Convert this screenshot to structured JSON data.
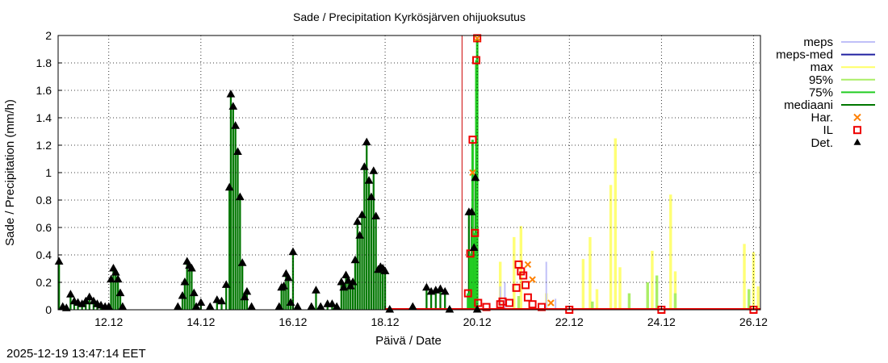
{
  "chart_data": {
    "type": "bar",
    "title": "Sade / Precipitation  Kyrkösjärven ohijuoksutus",
    "xlabel": "Päivä / Date",
    "ylabel": "Sade / Precipitation (mm/h)",
    "xlim": [
      10.9,
      26.15
    ],
    "ylim": [
      0,
      2
    ],
    "yticks": [
      0,
      0.2,
      0.4,
      0.6,
      0.8,
      1,
      1.2,
      1.4,
      1.6,
      1.8,
      2
    ],
    "ytick_labels": [
      "0",
      "0.2",
      "0.4",
      "0.6",
      "0.8",
      "1",
      "1.2",
      "1.4",
      "1.6",
      "1.8",
      "2"
    ],
    "xticks": [
      12,
      14,
      16,
      18,
      20,
      22,
      24,
      26
    ],
    "xtick_labels": [
      "12.12",
      "14.12",
      "16.12",
      "18.12",
      "20.12",
      "22.12",
      "24.12",
      "26.12"
    ],
    "now_marker": 19.67,
    "legend": [
      {
        "label": "meps",
        "style": "line",
        "color": "#c0c0f8"
      },
      {
        "label": "meps-med",
        "style": "line",
        "color": "#2020a0"
      },
      {
        "label": "max",
        "style": "line",
        "color": "#ffff66"
      },
      {
        "label": "95%",
        "style": "line",
        "color": "#aaee66"
      },
      {
        "label": "75%",
        "style": "line",
        "color": "#22cc22"
      },
      {
        "label": "mediaani",
        "style": "line",
        "color": "#007700"
      },
      {
        "label": "Har.",
        "style": "cross",
        "color": "#ff8000"
      },
      {
        "label": "IL",
        "style": "square",
        "color": "#ee0000"
      },
      {
        "label": "Det.",
        "style": "triangle",
        "color": "#000000"
      }
    ],
    "series": [
      {
        "name": "Det. (observed, hourly)",
        "points": [
          [
            10.92,
            0.35
          ],
          [
            11.0,
            0.02
          ],
          [
            11.08,
            0.01
          ],
          [
            11.17,
            0.11
          ],
          [
            11.25,
            0.06
          ],
          [
            11.33,
            0.05
          ],
          [
            11.42,
            0.04
          ],
          [
            11.5,
            0.06
          ],
          [
            11.58,
            0.09
          ],
          [
            11.67,
            0.06
          ],
          [
            11.75,
            0.04
          ],
          [
            11.83,
            0.03
          ],
          [
            11.92,
            0.02
          ],
          [
            12.0,
            0.02
          ],
          [
            12.05,
            0.22
          ],
          [
            12.1,
            0.3
          ],
          [
            12.15,
            0.27
          ],
          [
            12.2,
            0.22
          ],
          [
            12.25,
            0.12
          ],
          [
            12.3,
            0.02
          ],
          [
            13.5,
            0.02
          ],
          [
            13.6,
            0.1
          ],
          [
            13.65,
            0.2
          ],
          [
            13.7,
            0.35
          ],
          [
            13.75,
            0.32
          ],
          [
            13.8,
            0.3
          ],
          [
            13.85,
            0.12
          ],
          [
            13.9,
            0.02
          ],
          [
            14.0,
            0.05
          ],
          [
            14.2,
            0.02
          ],
          [
            14.35,
            0.07
          ],
          [
            14.45,
            0.06
          ],
          [
            14.55,
            0.18
          ],
          [
            14.62,
            0.89
          ],
          [
            14.65,
            1.57
          ],
          [
            14.7,
            1.48
          ],
          [
            14.75,
            1.34
          ],
          [
            14.8,
            1.15
          ],
          [
            14.85,
            0.82
          ],
          [
            14.9,
            0.34
          ],
          [
            14.95,
            0.09
          ],
          [
            15.0,
            0.13
          ],
          [
            15.1,
            0.02
          ],
          [
            15.7,
            0.02
          ],
          [
            15.75,
            0.16
          ],
          [
            15.8,
            0.17
          ],
          [
            15.85,
            0.26
          ],
          [
            15.9,
            0.23
          ],
          [
            15.95,
            0.05
          ],
          [
            16.0,
            0.42
          ],
          [
            16.1,
            0.02
          ],
          [
            16.4,
            0.02
          ],
          [
            16.5,
            0.14
          ],
          [
            16.6,
            0.02
          ],
          [
            16.75,
            0.04
          ],
          [
            16.85,
            0.04
          ],
          [
            16.95,
            0.02
          ],
          [
            17.05,
            0.2
          ],
          [
            17.1,
            0.16
          ],
          [
            17.15,
            0.25
          ],
          [
            17.2,
            0.21
          ],
          [
            17.25,
            0.17
          ],
          [
            17.3,
            0.2
          ],
          [
            17.35,
            0.36
          ],
          [
            17.4,
            0.64
          ],
          [
            17.45,
            0.54
          ],
          [
            17.5,
            0.69
          ],
          [
            17.55,
            1.04
          ],
          [
            17.6,
            1.22
          ],
          [
            17.65,
            0.94
          ],
          [
            17.7,
            0.82
          ],
          [
            17.75,
            1.01
          ],
          [
            17.8,
            0.68
          ],
          [
            17.85,
            0.29
          ],
          [
            17.9,
            0.31
          ],
          [
            17.95,
            0.3
          ],
          [
            18.0,
            0.28
          ],
          [
            18.1,
            0.0
          ],
          [
            18.6,
            0.02
          ],
          [
            18.9,
            0.16
          ],
          [
            19.0,
            0.13
          ],
          [
            19.1,
            0.14
          ],
          [
            19.2,
            0.15
          ],
          [
            19.3,
            0.13
          ],
          [
            19.4,
            0.0
          ],
          [
            19.82,
            0.71
          ],
          [
            19.88,
            0.71
          ],
          [
            19.93,
            0.45
          ],
          [
            19.96,
            0.96
          ],
          [
            20.0,
            0.0
          ]
        ]
      },
      {
        "name": "IL (forecast)",
        "points": [
          [
            19.8,
            0.12
          ],
          [
            19.85,
            0.41
          ],
          [
            19.9,
            1.24
          ],
          [
            19.95,
            0.56
          ],
          [
            19.98,
            1.82
          ],
          [
            20.0,
            1.98
          ],
          [
            20.02,
            0.05
          ],
          [
            20.2,
            0.02
          ],
          [
            20.5,
            0.04
          ],
          [
            20.55,
            0.06
          ],
          [
            20.7,
            0.05
          ],
          [
            20.85,
            0.16
          ],
          [
            20.9,
            0.33
          ],
          [
            20.95,
            0.28
          ],
          [
            21.0,
            0.25
          ],
          [
            21.05,
            0.18
          ],
          [
            21.1,
            0.09
          ],
          [
            21.2,
            0.04
          ],
          [
            21.4,
            0.02
          ],
          [
            22.0,
            0.0
          ],
          [
            24.0,
            0.0
          ],
          [
            26.0,
            0.0
          ]
        ]
      },
      {
        "name": "Har. (forecast)",
        "points": [
          [
            19.9,
            1.0
          ],
          [
            20.0,
            1.98
          ],
          [
            21.1,
            0.33
          ],
          [
            21.2,
            0.22
          ],
          [
            21.6,
            0.05
          ]
        ]
      },
      {
        "name": "max (ensemble)",
        "points": [
          [
            20.5,
            0.35
          ],
          [
            20.8,
            0.53
          ],
          [
            20.95,
            0.61
          ],
          [
            21.5,
            0.12
          ],
          [
            22.3,
            0.37
          ],
          [
            22.45,
            0.53
          ],
          [
            22.6,
            0.15
          ],
          [
            22.9,
            0.91
          ],
          [
            23.0,
            1.25
          ],
          [
            23.1,
            0.31
          ],
          [
            23.8,
            0.43
          ],
          [
            24.2,
            0.84
          ],
          [
            24.3,
            0.28
          ],
          [
            25.8,
            0.48
          ],
          [
            26.0,
            0.42
          ],
          [
            26.1,
            0.17
          ]
        ]
      },
      {
        "name": "95% (ensemble)",
        "points": [
          [
            20.9,
            0.1
          ],
          [
            22.5,
            0.06
          ],
          [
            23.3,
            0.12
          ],
          [
            23.7,
            0.2
          ],
          [
            23.9,
            0.25
          ],
          [
            24.3,
            0.12
          ],
          [
            25.9,
            0.15
          ]
        ]
      },
      {
        "name": "meps (members)",
        "points": [
          [
            20.5,
            0.17
          ],
          [
            20.6,
            0.2
          ],
          [
            21.5,
            0.35
          ],
          [
            21.7,
            0.08
          ]
        ]
      }
    ]
  },
  "footer": {
    "timestamp": "2025-12-19 13:47:14 EET"
  }
}
